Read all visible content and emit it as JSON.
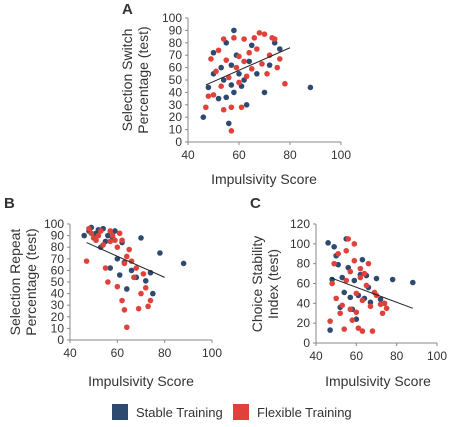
{
  "legend": {
    "items": [
      {
        "label": "Stable Training",
        "color": "#2e4a6e"
      },
      {
        "label": "Flexible Training",
        "color": "#e0413a"
      }
    ]
  },
  "chart_data": [
    {
      "panel": "A",
      "type": "scatter",
      "xlabel": "Impulsivity Score",
      "ylabel": [
        "Selection Switch",
        "Percentage (test)"
      ],
      "xlim": [
        40,
        100
      ],
      "ylim": [
        0,
        100
      ],
      "xticks": [
        40,
        60,
        80,
        100
      ],
      "yticks": [
        0,
        10,
        20,
        30,
        40,
        50,
        60,
        70,
        80,
        90,
        100
      ],
      "grid": false,
      "series": [
        {
          "name": "Stable Training",
          "color": "#2e4a6e",
          "points": [
            [
              46,
              20
            ],
            [
              48,
              44
            ],
            [
              50,
              55
            ],
            [
              50,
              72
            ],
            [
              52,
              35
            ],
            [
              53,
              60
            ],
            [
              54,
              50
            ],
            [
              55,
              80
            ],
            [
              55,
              36
            ],
            [
              56,
              15
            ],
            [
              57,
              46
            ],
            [
              57,
              62
            ],
            [
              58,
              40
            ],
            [
              58,
              90
            ],
            [
              59,
              70
            ],
            [
              60,
              55
            ],
            [
              61,
              45
            ],
            [
              62,
              50
            ],
            [
              63,
              30
            ],
            [
              64,
              65
            ],
            [
              65,
              78
            ],
            [
              67,
              55
            ],
            [
              70,
              40
            ],
            [
              72,
              62
            ],
            [
              74,
              80
            ],
            [
              76,
              75
            ],
            [
              88,
              44
            ]
          ]
        },
        {
          "name": "Flexible Training",
          "color": "#e0413a",
          "points": [
            [
              47,
              28
            ],
            [
              48,
              37
            ],
            [
              49,
              67
            ],
            [
              50,
              38
            ],
            [
              51,
              57
            ],
            [
              52,
              74
            ],
            [
              53,
              45
            ],
            [
              54,
              83
            ],
            [
              54,
              26
            ],
            [
              55,
              66
            ],
            [
              56,
              52
            ],
            [
              57,
              9
            ],
            [
              57,
              28
            ],
            [
              58,
              84
            ],
            [
              59,
              60
            ],
            [
              60,
              48
            ],
            [
              60,
              69
            ],
            [
              61,
              28
            ],
            [
              62,
              83
            ],
            [
              62,
              65
            ],
            [
              63,
              53
            ],
            [
              64,
              72
            ],
            [
              65,
              59
            ],
            [
              66,
              84
            ],
            [
              67,
              75
            ],
            [
              68,
              88
            ],
            [
              69,
              63
            ],
            [
              70,
              87
            ],
            [
              71,
              55
            ],
            [
              72,
              70
            ],
            [
              73,
              84
            ],
            [
              74,
              83
            ],
            [
              75,
              60
            ],
            [
              76,
              67
            ],
            [
              78,
              47
            ]
          ]
        }
      ],
      "trendline": [
        [
          47,
          46
        ],
        [
          80,
          76
        ]
      ]
    },
    {
      "panel": "B",
      "type": "scatter",
      "xlabel": "Impulsivity Score",
      "ylabel": [
        "Selection Repeat",
        "Percentage (test)"
      ],
      "xlim": [
        40,
        100
      ],
      "ylim": [
        0,
        100
      ],
      "xticks": [
        40,
        60,
        80,
        100
      ],
      "yticks": [
        0,
        10,
        20,
        30,
        40,
        50,
        60,
        70,
        80,
        90,
        100
      ],
      "grid": false,
      "series": [
        {
          "name": "Stable Training",
          "color": "#2e4a6e",
          "points": [
            [
              46,
              90
            ],
            [
              48,
              94
            ],
            [
              49,
              97
            ],
            [
              50,
              88
            ],
            [
              51,
              92
            ],
            [
              52,
              95
            ],
            [
              53,
              80
            ],
            [
              54,
              96
            ],
            [
              55,
              85
            ],
            [
              56,
              90
            ],
            [
              57,
              62
            ],
            [
              58,
              88
            ],
            [
              59,
              94
            ],
            [
              60,
              70
            ],
            [
              61,
              56
            ],
            [
              62,
              84
            ],
            [
              63,
              67
            ],
            [
              64,
              44
            ],
            [
              66,
              60
            ],
            [
              68,
              54
            ],
            [
              70,
              88
            ],
            [
              72,
              51
            ],
            [
              74,
              58
            ],
            [
              75,
              40
            ],
            [
              78,
              75
            ],
            [
              88,
              66
            ]
          ]
        },
        {
          "name": "Flexible Training",
          "color": "#e0413a",
          "points": [
            [
              47,
              68
            ],
            [
              48,
              96
            ],
            [
              49,
              92
            ],
            [
              50,
              88
            ],
            [
              51,
              86
            ],
            [
              52,
              90
            ],
            [
              53,
              94
            ],
            [
              54,
              82
            ],
            [
              55,
              62
            ],
            [
              56,
              50
            ],
            [
              57,
              94
            ],
            [
              57,
              85
            ],
            [
              58,
              90
            ],
            [
              59,
              86
            ],
            [
              60,
              46
            ],
            [
              60,
              80
            ],
            [
              61,
              92
            ],
            [
              62,
              34
            ],
            [
              62,
              86
            ],
            [
              63,
              66
            ],
            [
              63,
              26
            ],
            [
              64,
              72
            ],
            [
              64,
              11
            ],
            [
              65,
              78
            ],
            [
              66,
              68
            ],
            [
              67,
              54
            ],
            [
              68,
              62
            ],
            [
              69,
              27
            ],
            [
              70,
              40
            ],
            [
              71,
              57
            ],
            [
              72,
              45
            ],
            [
              73,
              29
            ],
            [
              74,
              34
            ]
          ]
        }
      ],
      "trendline": [
        [
          47,
          84
        ],
        [
          80,
          54
        ]
      ]
    },
    {
      "panel": "C",
      "type": "scatter",
      "xlabel": "Impulsivity Score",
      "ylabel": [
        "Choice Stability",
        "Index (test)"
      ],
      "xlim": [
        40,
        100
      ],
      "ylim": [
        0,
        120
      ],
      "xticks": [
        40,
        60,
        80,
        100
      ],
      "yticks": [
        0,
        20,
        40,
        60,
        80,
        100,
        120
      ],
      "grid": false,
      "series": [
        {
          "name": "Stable Training",
          "color": "#2e4a6e",
          "points": [
            [
              46,
              101
            ],
            [
              47,
              13
            ],
            [
              48,
              64
            ],
            [
              49,
              97
            ],
            [
              50,
              88
            ],
            [
              51,
              79
            ],
            [
              52,
              36
            ],
            [
              53,
              66
            ],
            [
              54,
              51
            ],
            [
              55,
              105
            ],
            [
              56,
              76
            ],
            [
              57,
              46
            ],
            [
              58,
              34
            ],
            [
              59,
              63
            ],
            [
              60,
              24
            ],
            [
              61,
              48
            ],
            [
              62,
              69
            ],
            [
              63,
              84
            ],
            [
              64,
              45
            ],
            [
              65,
              68
            ],
            [
              66,
              56
            ],
            [
              67,
              41
            ],
            [
              70,
              65
            ],
            [
              72,
              44
            ],
            [
              78,
              64
            ],
            [
              88,
              61
            ]
          ]
        },
        {
          "name": "Flexible Training",
          "color": "#e0413a",
          "points": [
            [
              47,
              22
            ],
            [
              48,
              60
            ],
            [
              49,
              80
            ],
            [
              50,
              45
            ],
            [
              51,
              90
            ],
            [
              52,
              30
            ],
            [
              53,
              38
            ],
            [
              54,
              14
            ],
            [
              55,
              63
            ],
            [
              55,
              93
            ],
            [
              56,
              105
            ],
            [
              57,
              72
            ],
            [
              57,
              34
            ],
            [
              58,
              23
            ],
            [
              59,
              83
            ],
            [
              59,
              100
            ],
            [
              60,
              31
            ],
            [
              60,
              50
            ],
            [
              61,
              15
            ],
            [
              62,
              75
            ],
            [
              62,
              66
            ],
            [
              63,
              43
            ],
            [
              63,
              12
            ],
            [
              64,
              70
            ],
            [
              65,
              58
            ],
            [
              66,
              80
            ],
            [
              67,
              37
            ],
            [
              68,
              12
            ],
            [
              69,
              51
            ],
            [
              70,
              48
            ],
            [
              72,
              39
            ],
            [
              73,
              30
            ],
            [
              74,
              40
            ],
            [
              75,
              35
            ]
          ]
        }
      ],
      "trendline": [
        [
          47,
          66
        ],
        [
          88,
          35
        ]
      ]
    }
  ]
}
